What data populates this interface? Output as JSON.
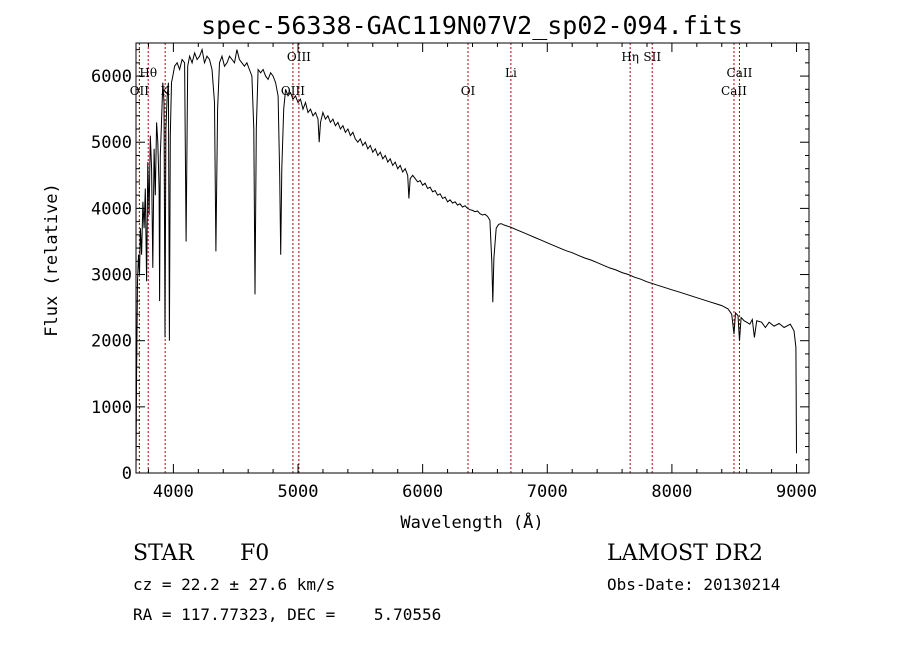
{
  "chart_data": {
    "type": "line",
    "title": "spec-56338-GAC119N07V2_sp02-094.fits",
    "xlabel": "Wavelength (Å)",
    "ylabel": "Flux (relative)",
    "xlim": [
      3700,
      9100
    ],
    "ylim": [
      0,
      6500
    ],
    "x_ticks": [
      4000,
      5000,
      6000,
      7000,
      8000,
      9000
    ],
    "y_ticks": [
      0,
      1000,
      2000,
      3000,
      4000,
      5000,
      6000
    ],
    "series": [
      {
        "color": "#000000",
        "points": [
          [
            3700,
            0
          ],
          [
            3705,
            1500
          ],
          [
            3712,
            2900
          ],
          [
            3720,
            3300
          ],
          [
            3728,
            3000
          ],
          [
            3735,
            3700
          ],
          [
            3745,
            3300
          ],
          [
            3755,
            4100
          ],
          [
            3765,
            3700
          ],
          [
            3775,
            4300
          ],
          [
            3785,
            2900
          ],
          [
            3795,
            4700
          ],
          [
            3805,
            3900
          ],
          [
            3815,
            5100
          ],
          [
            3825,
            4600
          ],
          [
            3835,
            3100
          ],
          [
            3845,
            4900
          ],
          [
            3855,
            4200
          ],
          [
            3865,
            5300
          ],
          [
            3875,
            5000
          ],
          [
            3885,
            4300
          ],
          [
            3889,
            2600
          ],
          [
            3895,
            4800
          ],
          [
            3905,
            5300
          ],
          [
            3915,
            5900
          ],
          [
            3925,
            5600
          ],
          [
            3933,
            2050
          ],
          [
            3940,
            5200
          ],
          [
            3950,
            5700
          ],
          [
            3960,
            5900
          ],
          [
            3968,
            2000
          ],
          [
            3975,
            5100
          ],
          [
            3985,
            5900
          ],
          [
            3995,
            6000
          ],
          [
            4010,
            6150
          ],
          [
            4030,
            6200
          ],
          [
            4050,
            6100
          ],
          [
            4070,
            6250
          ],
          [
            4090,
            6200
          ],
          [
            4102,
            3500
          ],
          [
            4115,
            6150
          ],
          [
            4130,
            6300
          ],
          [
            4150,
            6200
          ],
          [
            4170,
            6350
          ],
          [
            4190,
            6250
          ],
          [
            4210,
            6300
          ],
          [
            4230,
            6400
          ],
          [
            4250,
            6200
          ],
          [
            4270,
            6300
          ],
          [
            4290,
            6250
          ],
          [
            4310,
            6100
          ],
          [
            4330,
            5600
          ],
          [
            4341,
            3350
          ],
          [
            4355,
            5500
          ],
          [
            4370,
            6200
          ],
          [
            4390,
            6300
          ],
          [
            4410,
            6150
          ],
          [
            4430,
            6200
          ],
          [
            4450,
            6300
          ],
          [
            4470,
            6250
          ],
          [
            4490,
            6200
          ],
          [
            4510,
            6400
          ],
          [
            4530,
            6250
          ],
          [
            4550,
            6200
          ],
          [
            4570,
            6150
          ],
          [
            4590,
            6200
          ],
          [
            4610,
            6100
          ],
          [
            4630,
            6000
          ],
          [
            4645,
            5200
          ],
          [
            4655,
            2700
          ],
          [
            4665,
            5200
          ],
          [
            4680,
            6100
          ],
          [
            4700,
            6050
          ],
          [
            4720,
            6100
          ],
          [
            4740,
            6000
          ],
          [
            4760,
            5950
          ],
          [
            4780,
            6050
          ],
          [
            4800,
            6000
          ],
          [
            4820,
            5900
          ],
          [
            4840,
            5700
          ],
          [
            4853,
            4500
          ],
          [
            4861,
            3300
          ],
          [
            4870,
            4600
          ],
          [
            4885,
            5500
          ],
          [
            4900,
            5800
          ],
          [
            4920,
            5700
          ],
          [
            4940,
            5750
          ],
          [
            4960,
            5650
          ],
          [
            4980,
            5700
          ],
          [
            5000,
            5600
          ],
          [
            5020,
            5650
          ],
          [
            5040,
            5500
          ],
          [
            5060,
            5600
          ],
          [
            5080,
            5450
          ],
          [
            5100,
            5500
          ],
          [
            5120,
            5400
          ],
          [
            5140,
            5450
          ],
          [
            5160,
            5350
          ],
          [
            5170,
            5000
          ],
          [
            5180,
            5300
          ],
          [
            5200,
            5450
          ],
          [
            5220,
            5350
          ],
          [
            5240,
            5400
          ],
          [
            5260,
            5300
          ],
          [
            5280,
            5350
          ],
          [
            5300,
            5250
          ],
          [
            5320,
            5300
          ],
          [
            5340,
            5200
          ],
          [
            5360,
            5250
          ],
          [
            5380,
            5150
          ],
          [
            5400,
            5200
          ],
          [
            5420,
            5100
          ],
          [
            5440,
            5150
          ],
          [
            5460,
            5050
          ],
          [
            5480,
            5000
          ],
          [
            5500,
            5050
          ],
          [
            5520,
            4950
          ],
          [
            5540,
            5000
          ],
          [
            5560,
            4900
          ],
          [
            5580,
            4950
          ],
          [
            5600,
            4850
          ],
          [
            5620,
            4900
          ],
          [
            5640,
            4800
          ],
          [
            5660,
            4850
          ],
          [
            5680,
            4750
          ],
          [
            5700,
            4800
          ],
          [
            5720,
            4700
          ],
          [
            5740,
            4750
          ],
          [
            5760,
            4650
          ],
          [
            5780,
            4700
          ],
          [
            5800,
            4600
          ],
          [
            5820,
            4650
          ],
          [
            5840,
            4550
          ],
          [
            5860,
            4600
          ],
          [
            5880,
            4500
          ],
          [
            5890,
            4150
          ],
          [
            5900,
            4450
          ],
          [
            5920,
            4500
          ],
          [
            5940,
            4450
          ],
          [
            5960,
            4400
          ],
          [
            5980,
            4420
          ],
          [
            6000,
            4350
          ],
          [
            6020,
            4380
          ],
          [
            6040,
            4300
          ],
          [
            6060,
            4320
          ],
          [
            6080,
            4250
          ],
          [
            6100,
            4270
          ],
          [
            6120,
            4200
          ],
          [
            6140,
            4220
          ],
          [
            6160,
            4150
          ],
          [
            6180,
            4170
          ],
          [
            6200,
            4100
          ],
          [
            6220,
            4130
          ],
          [
            6240,
            4080
          ],
          [
            6260,
            4100
          ],
          [
            6280,
            4050
          ],
          [
            6300,
            4070
          ],
          [
            6320,
            4020
          ],
          [
            6340,
            4040
          ],
          [
            6360,
            4000
          ],
          [
            6380,
            3980
          ],
          [
            6400,
            3970
          ],
          [
            6420,
            3950
          ],
          [
            6440,
            3960
          ],
          [
            6460,
            3920
          ],
          [
            6480,
            3900
          ],
          [
            6500,
            3910
          ],
          [
            6520,
            3880
          ],
          [
            6540,
            3820
          ],
          [
            6555,
            3200
          ],
          [
            6563,
            2580
          ],
          [
            6572,
            3250
          ],
          [
            6590,
            3700
          ],
          [
            6610,
            3760
          ],
          [
            6630,
            3770
          ],
          [
            6650,
            3750
          ],
          [
            6700,
            3720
          ],
          [
            6750,
            3680
          ],
          [
            6800,
            3640
          ],
          [
            6850,
            3600
          ],
          [
            6900,
            3560
          ],
          [
            6950,
            3520
          ],
          [
            7000,
            3480
          ],
          [
            7050,
            3440
          ],
          [
            7100,
            3400
          ],
          [
            7150,
            3360
          ],
          [
            7200,
            3330
          ],
          [
            7250,
            3290
          ],
          [
            7300,
            3250
          ],
          [
            7350,
            3220
          ],
          [
            7400,
            3180
          ],
          [
            7450,
            3140
          ],
          [
            7500,
            3100
          ],
          [
            7550,
            3070
          ],
          [
            7600,
            3030
          ],
          [
            7650,
            3000
          ],
          [
            7700,
            2960
          ],
          [
            7750,
            2930
          ],
          [
            7800,
            2890
          ],
          [
            7850,
            2860
          ],
          [
            7900,
            2830
          ],
          [
            7950,
            2800
          ],
          [
            8000,
            2770
          ],
          [
            8050,
            2740
          ],
          [
            8100,
            2710
          ],
          [
            8150,
            2680
          ],
          [
            8200,
            2650
          ],
          [
            8250,
            2620
          ],
          [
            8300,
            2590
          ],
          [
            8350,
            2560
          ],
          [
            8400,
            2530
          ],
          [
            8450,
            2480
          ],
          [
            8480,
            2400
          ],
          [
            8498,
            2100
          ],
          [
            8510,
            2420
          ],
          [
            8530,
            2380
          ],
          [
            8542,
            2000
          ],
          [
            8555,
            2350
          ],
          [
            8580,
            2300
          ],
          [
            8600,
            2280
          ],
          [
            8625,
            2250
          ],
          [
            8645,
            2320
          ],
          [
            8662,
            2050
          ],
          [
            8680,
            2300
          ],
          [
            8720,
            2280
          ],
          [
            8750,
            2200
          ],
          [
            8780,
            2280
          ],
          [
            8820,
            2220
          ],
          [
            8860,
            2260
          ],
          [
            8900,
            2200
          ],
          [
            8950,
            2250
          ],
          [
            8980,
            2150
          ],
          [
            8995,
            1900
          ],
          [
            9000,
            300
          ]
        ]
      }
    ],
    "reference_lines": [
      {
        "x": 3727,
        "label": "OII",
        "row": 2
      },
      {
        "x": 3798,
        "label": "Hθ",
        "row": 1
      },
      {
        "x": 3934,
        "label": "K",
        "row": 2
      },
      {
        "x": 4959,
        "label": "OIII",
        "row": 2
      },
      {
        "x": 5007,
        "label": "OIII",
        "row": 0
      },
      {
        "x": 6364,
        "label": "OI",
        "row": 2
      },
      {
        "x": 6708,
        "label": "Li",
        "row": 1
      },
      {
        "x": 7665,
        "label": "Hη",
        "row": 0
      },
      {
        "x": 7842,
        "label": "SII",
        "row": 0
      },
      {
        "x": 8498,
        "label": "CaII",
        "row": 2
      },
      {
        "x": 8542,
        "label": "CaII",
        "row": 1
      }
    ],
    "reference_line_color": "#b00000",
    "grid": false
  },
  "info": {
    "object_type": "STAR",
    "subclass": "F0",
    "redshift_text": "cz = 22.2 ± 27.6 km/s",
    "coords_text": "RA = 117.77323, DEC =    5.70556",
    "survey": "LAMOST DR2",
    "obs_date_text": "Obs-Date: 20130214"
  }
}
